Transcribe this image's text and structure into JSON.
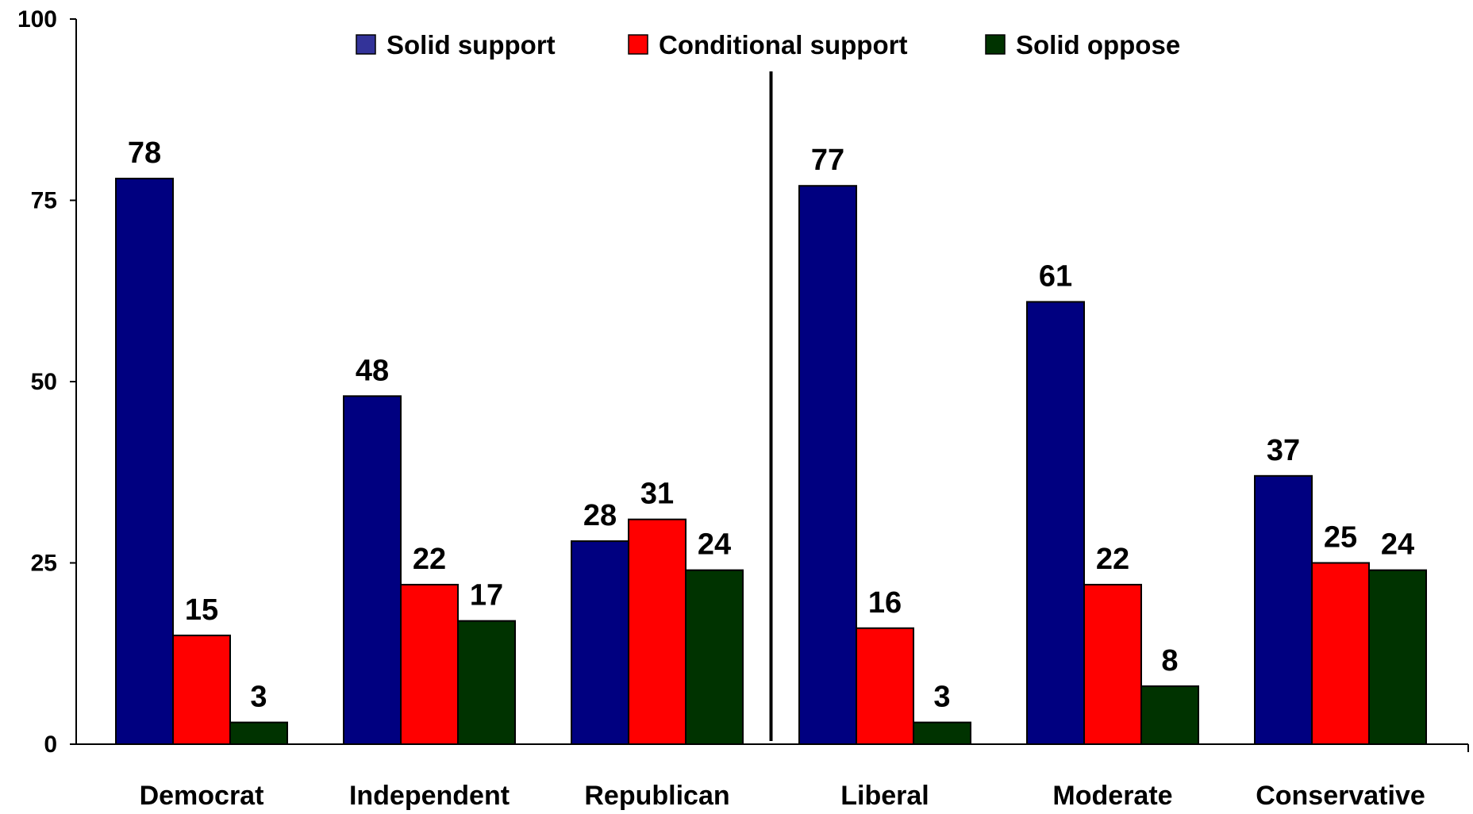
{
  "chart_data": {
    "type": "bar",
    "categories": [
      "Democrat",
      "Independent",
      "Republican",
      "Liberal",
      "Moderate",
      "Conservative"
    ],
    "series": [
      {
        "name": "Solid support",
        "color": "#000080",
        "values": [
          78,
          48,
          28,
          77,
          61,
          37
        ]
      },
      {
        "name": "Conditional support",
        "color": "#ff0000",
        "values": [
          15,
          22,
          31,
          16,
          22,
          25
        ]
      },
      {
        "name": "Solid oppose",
        "color": "#003300",
        "values": [
          3,
          17,
          24,
          3,
          8,
          24
        ]
      }
    ],
    "legend_swatch_colors": [
      "#333399",
      "#ff0000",
      "#003300"
    ],
    "ylim": [
      0,
      100
    ],
    "yticks": [
      0,
      25,
      50,
      75,
      100
    ],
    "data_labels": true,
    "legend_position": "top",
    "grid": false,
    "divider_after_category": 2,
    "title": "",
    "xlabel": "",
    "ylabel": ""
  }
}
